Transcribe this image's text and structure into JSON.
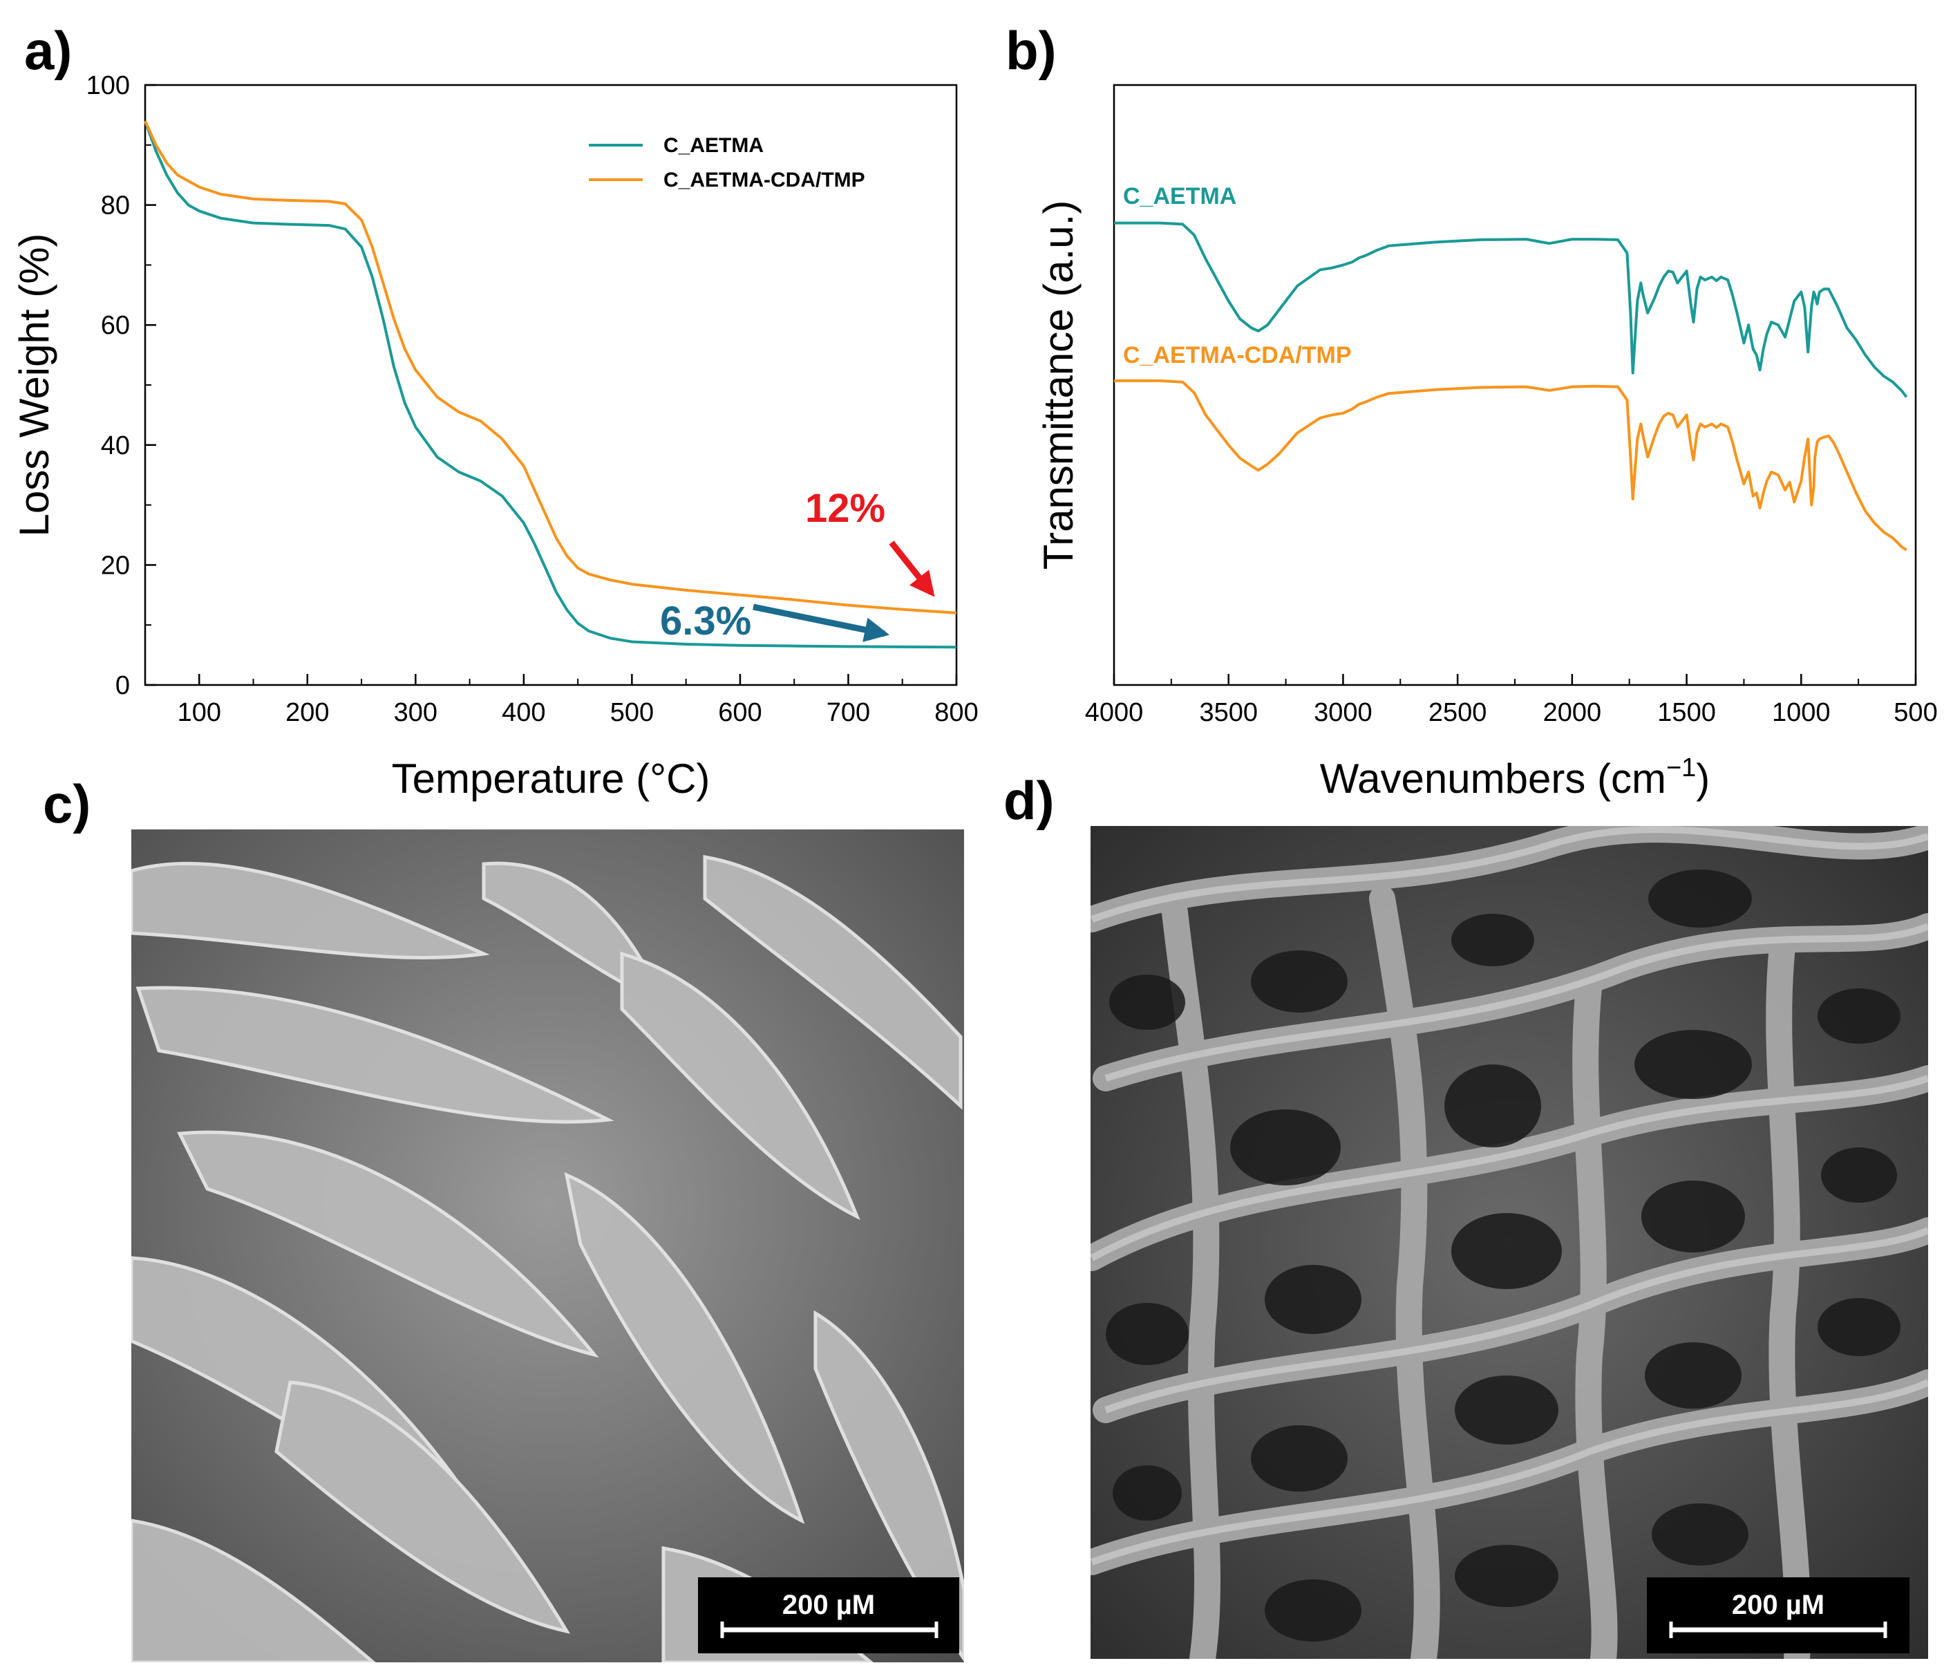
{
  "panels": {
    "a": {
      "letter": "a)"
    },
    "b": {
      "letter": "b)"
    },
    "c": {
      "letter": "c)",
      "scale_bar": "200 µM",
      "image": "SEM micrograph of C_AETMA cross-section with smooth lamellar pore walls"
    },
    "d": {
      "letter": "d)",
      "scale_bar": "200 µM",
      "image": "SEM micrograph of C_AETMA-CDA/TMP cross-section with rough interconnected porous network"
    }
  },
  "colors": {
    "teal": "#1a9a96",
    "orange": "#f7941d",
    "red": "#e8191f",
    "blue": "#1b6b8f"
  },
  "chart_data": [
    {
      "type": "line",
      "title": "",
      "xlabel": "Temperature (°C)",
      "ylabel": "Loss Weight (%)",
      "xlim": [
        50,
        800
      ],
      "ylim": [
        0,
        100
      ],
      "xticks": [
        100,
        200,
        300,
        400,
        500,
        600,
        700,
        800
      ],
      "yticks": [
        0,
        20,
        40,
        60,
        80,
        100
      ],
      "legend_position": "top-right",
      "series": [
        {
          "name": "C_AETMA",
          "color": "#1a9a96",
          "x": [
            50,
            60,
            70,
            80,
            90,
            100,
            120,
            150,
            180,
            220,
            235,
            250,
            260,
            270,
            280,
            290,
            300,
            320,
            340,
            360,
            380,
            400,
            410,
            420,
            430,
            440,
            450,
            460,
            480,
            500,
            550,
            600,
            650,
            700,
            750,
            800
          ],
          "y": [
            94,
            89,
            85,
            82,
            80,
            79,
            77.8,
            77,
            76.8,
            76.6,
            76,
            73,
            68,
            61,
            53,
            47,
            43,
            38,
            35.5,
            34,
            31.5,
            27,
            23.5,
            19.5,
            15.5,
            12.5,
            10.3,
            9,
            7.8,
            7.2,
            6.8,
            6.6,
            6.5,
            6.4,
            6.35,
            6.3
          ]
        },
        {
          "name": "C_AETMA-CDA/TMP",
          "color": "#f7941d",
          "x": [
            50,
            60,
            70,
            80,
            90,
            100,
            120,
            150,
            180,
            220,
            235,
            250,
            260,
            270,
            280,
            290,
            300,
            320,
            340,
            360,
            380,
            400,
            410,
            420,
            430,
            440,
            450,
            460,
            480,
            500,
            550,
            600,
            650,
            700,
            750,
            800
          ],
          "y": [
            94,
            90,
            87,
            85,
            84,
            83,
            81.8,
            81,
            80.8,
            80.6,
            80.2,
            77.5,
            73,
            67,
            61,
            56,
            52.5,
            48,
            45.5,
            44,
            41,
            36.5,
            32.5,
            28.5,
            24.5,
            21.5,
            19.5,
            18.5,
            17.5,
            16.8,
            15.8,
            15,
            14.2,
            13.3,
            12.6,
            12
          ]
        }
      ],
      "annotations": [
        {
          "text": "12%",
          "color": "#e8191f"
        },
        {
          "text": "6.3%",
          "color": "#1b6b8f"
        }
      ]
    },
    {
      "type": "line",
      "title": "",
      "xlabel": "Wavenumbers (cm",
      "xlabel_superscript": "−1",
      "xlabel_suffix": ")",
      "ylabel": "Transmittance (a.u.)",
      "xlim": [
        4000,
        500
      ],
      "ylim": [
        0,
        100
      ],
      "xticks": [
        4000,
        3500,
        3000,
        2500,
        2000,
        1500,
        1000,
        500
      ],
      "series": [
        {
          "name": "C_AETMA",
          "color": "#1a9a96",
          "x": [
            4000,
            3800,
            3700,
            3650,
            3600,
            3500,
            3450,
            3400,
            3370,
            3330,
            3280,
            3200,
            3100,
            3050,
            3000,
            2960,
            2930,
            2900,
            2850,
            2800,
            2600,
            2400,
            2200,
            2100,
            2000,
            1900,
            1800,
            1760,
            1745,
            1735,
            1725,
            1715,
            1700,
            1690,
            1670,
            1640,
            1620,
            1600,
            1580,
            1560,
            1540,
            1500,
            1480,
            1470,
            1455,
            1440,
            1420,
            1390,
            1370,
            1350,
            1320,
            1300,
            1280,
            1250,
            1230,
            1210,
            1195,
            1180,
            1165,
            1150,
            1130,
            1100,
            1070,
            1050,
            1030,
            1000,
            985,
            970,
            955,
            945,
            940,
            930,
            920,
            900,
            880,
            860,
            840,
            800,
            760,
            720,
            680,
            640,
            600,
            560,
            540
          ],
          "y": [
            77,
            77,
            76.8,
            75,
            71,
            64,
            61,
            59.5,
            59,
            60,
            62.5,
            66.5,
            69.2,
            69.5,
            70,
            70.5,
            71.2,
            71.6,
            72.5,
            73.2,
            73.8,
            74.2,
            74.3,
            73.6,
            74.3,
            74.3,
            74.2,
            72,
            62,
            52,
            58,
            64,
            67,
            65,
            62,
            64.5,
            66.5,
            68,
            69,
            68.8,
            67,
            69,
            63,
            60.5,
            66,
            68,
            67.5,
            68,
            67.4,
            68,
            67.5,
            65,
            62,
            57,
            60,
            56,
            55,
            52.5,
            56,
            58.5,
            60.5,
            60,
            58,
            61,
            64,
            65.5,
            63,
            55.5,
            63,
            65.5,
            65,
            63.5,
            65.5,
            66,
            66,
            64.5,
            63,
            59.5,
            57.5,
            55,
            53,
            51.5,
            50.5,
            49,
            48
          ]
        },
        {
          "name": "C_AETMA-CDA/TMP",
          "color": "#f7941d",
          "x": [
            4000,
            3800,
            3700,
            3650,
            3600,
            3500,
            3450,
            3400,
            3370,
            3330,
            3280,
            3200,
            3100,
            3050,
            3000,
            2960,
            2930,
            2900,
            2850,
            2800,
            2600,
            2400,
            2200,
            2100,
            2000,
            1900,
            1800,
            1760,
            1745,
            1735,
            1725,
            1715,
            1700,
            1690,
            1670,
            1640,
            1620,
            1600,
            1580,
            1560,
            1540,
            1500,
            1480,
            1470,
            1455,
            1440,
            1420,
            1390,
            1370,
            1350,
            1320,
            1300,
            1280,
            1250,
            1230,
            1210,
            1195,
            1180,
            1165,
            1150,
            1130,
            1100,
            1070,
            1050,
            1030,
            1000,
            985,
            970,
            955,
            945,
            940,
            930,
            920,
            900,
            880,
            860,
            840,
            800,
            760,
            720,
            680,
            640,
            600,
            560,
            540
          ],
          "y": [
            50.7,
            50.7,
            50.5,
            48.7,
            45,
            40,
            37.8,
            36.5,
            35.8,
            36.8,
            38.5,
            42,
            44.5,
            45,
            45.3,
            46,
            46.8,
            47.2,
            48,
            48.6,
            49.2,
            49.6,
            49.7,
            49.1,
            49.7,
            49.8,
            49.7,
            47.5,
            38,
            31,
            36,
            41,
            43.5,
            41.5,
            38,
            41.5,
            43.5,
            44.8,
            45.3,
            45,
            43,
            45,
            39.5,
            37.5,
            42,
            43.5,
            43,
            43.5,
            42.9,
            43.5,
            43,
            40.5,
            37.5,
            33.5,
            35.5,
            31.5,
            32,
            29.5,
            32,
            34,
            35.5,
            35,
            32.5,
            33.8,
            30.5,
            34,
            38,
            41,
            30,
            33,
            38,
            40.5,
            41,
            41.3,
            41.5,
            40.5,
            39,
            35.5,
            32,
            29,
            27,
            25.5,
            24.5,
            23,
            22.5
          ]
        }
      ]
    }
  ]
}
